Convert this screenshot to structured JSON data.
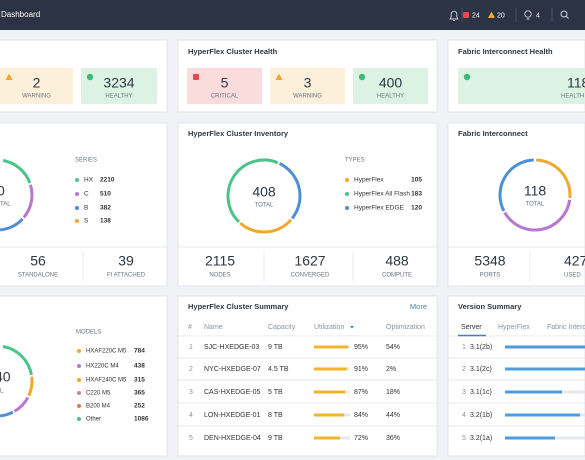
{
  "topbar": {
    "title": "Dashboard",
    "critical_count": "24",
    "warning_count": "20",
    "tips_count": "4"
  },
  "server_health": {
    "warning": {
      "value": "2",
      "label": "WARNING"
    },
    "healthy": {
      "value": "3234",
      "label": "HEALTHY"
    }
  },
  "cluster_health": {
    "title": "HyperFlex Cluster Health",
    "critical": {
      "value": "5",
      "label": "CRITICAL"
    },
    "warning": {
      "value": "3",
      "label": "WARNING"
    },
    "healthy": {
      "value": "400",
      "label": "HEALTHY"
    }
  },
  "fi_health": {
    "title": "Fabric Interconnect Health",
    "healthy": {
      "value": "118",
      "label": "HEALTH"
    }
  },
  "server_inventory": {
    "total_value": "0",
    "total_label": "TAL",
    "list_title": "SERIES",
    "items": [
      {
        "name": "HX",
        "value": 2210,
        "color": "#4cc38a"
      },
      {
        "name": "C",
        "value": 510,
        "color": "#b678d0"
      },
      {
        "name": "B",
        "value": 382,
        "color": "#4f8fd6"
      },
      {
        "name": "S",
        "value": 138,
        "color": "#f0a830"
      }
    ],
    "stats": [
      {
        "value": "56",
        "label": "STANDALONE"
      },
      {
        "value": "39",
        "label": "FI ATTACHED"
      }
    ]
  },
  "cluster_inventory": {
    "title": "HyperFlex Cluster Inventory",
    "total_value": "408",
    "total_label": "TOTAL",
    "list_title": "TYPES",
    "items": [
      {
        "name": "HyperFlex",
        "value": 105,
        "color": "#f0a830"
      },
      {
        "name": "HyperFlex All Flash",
        "value": 183,
        "color": "#4cc38a"
      },
      {
        "name": "HyperFlex EDGE",
        "value": 120,
        "color": "#4f8fd6"
      }
    ],
    "stats": [
      {
        "value": "2115",
        "label": "NODES"
      },
      {
        "value": "1627",
        "label": "CONVERGED"
      },
      {
        "value": "488",
        "label": "COMPUTE"
      }
    ]
  },
  "fi_inventory": {
    "title": "Fabric Interconnect",
    "total_value": "118",
    "total_label": "TOTAL",
    "stats": [
      {
        "value": "5348",
        "label": "PORTS"
      },
      {
        "value": "427",
        "label": "USED"
      }
    ]
  },
  "model_inventory": {
    "total_value": "40",
    "total_label": "L",
    "list_title": "MODELS",
    "items": [
      {
        "name": "HXAF220C M5",
        "value": 784,
        "color": "#f0a830"
      },
      {
        "name": "HX220C M4",
        "value": 438,
        "color": "#b678d0"
      },
      {
        "name": "HXAF240C M5",
        "value": 315,
        "color": "#f0a830"
      },
      {
        "name": "C220 M5",
        "value": 365,
        "color": "#d678b0"
      },
      {
        "name": "B200 M4",
        "value": 252,
        "color": "#e8743b"
      },
      {
        "name": "Other",
        "value": 1086,
        "color": "#4cc38a"
      }
    ]
  },
  "cluster_summary": {
    "title": "HyperFlex Cluster Summary",
    "more": "More",
    "columns": [
      "#",
      "Name",
      "Capacity",
      "Utilization",
      "Optimization"
    ],
    "rows": [
      {
        "id": "1",
        "name": "SJC-HXEDGE-03",
        "capacity": "9 TB",
        "utilization": {
          "value": 95,
          "label": "95%"
        },
        "optimization": "54%"
      },
      {
        "id": "2",
        "name": "NYC-HXEDGE-07",
        "capacity": "4.5 TB",
        "utilization": {
          "value": 91,
          "label": "91%"
        },
        "optimization": "2%"
      },
      {
        "id": "3",
        "name": "CAS-HXEDGE-05",
        "capacity": "5 TB",
        "utilization": {
          "value": 87,
          "label": "87%"
        },
        "optimization": "18%"
      },
      {
        "id": "4",
        "name": "LON-HXEDGE-01",
        "capacity": "8 TB",
        "utilization": {
          "value": 84,
          "label": "84%"
        },
        "optimization": "44%"
      },
      {
        "id": "5",
        "name": "DEN-HXEDGE-04",
        "capacity": "9 TB",
        "utilization": {
          "value": 72,
          "label": "72%"
        },
        "optimization": "36%"
      }
    ]
  },
  "version_summary": {
    "title": "Version Summary",
    "tabs": [
      "Server",
      "HyperFlex",
      "Fabric Interc"
    ],
    "rows": [
      {
        "id": "1",
        "version": "3.1(2b)"
      },
      {
        "id": "2",
        "version": "3.1(2c)"
      },
      {
        "id": "3",
        "version": "3.1(1c)"
      },
      {
        "id": "4",
        "version": "3.2(1b)"
      },
      {
        "id": "5",
        "version": "3.2(1a)"
      }
    ]
  }
}
